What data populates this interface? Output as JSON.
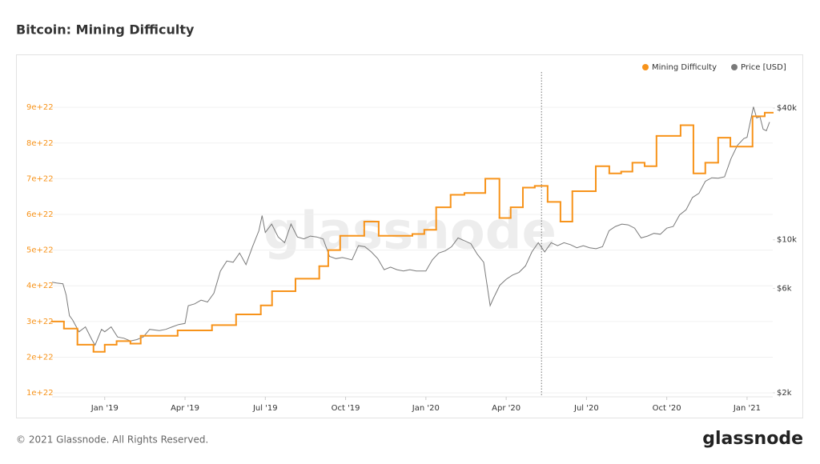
{
  "chart_data": {
    "type": "line",
    "title": "Bitcoin: Mining Difficulty",
    "watermark": "glassnode",
    "footer": "© 2021 Glassnode. All Rights Reserved.",
    "brand": "glassnode",
    "grid": true,
    "legend": "top-right",
    "xlim": [
      2018.836,
      2021.08
    ],
    "xticks": [
      {
        "value": 2019.0,
        "label": "Jan '19"
      },
      {
        "value": 2019.25,
        "label": "Apr '19"
      },
      {
        "value": 2019.5,
        "label": "Jul '19"
      },
      {
        "value": 2019.75,
        "label": "Oct '19"
      },
      {
        "value": 2020.0,
        "label": "Jan '20"
      },
      {
        "value": 2020.25,
        "label": "Apr '20"
      },
      {
        "value": 2020.5,
        "label": "Jul '20"
      },
      {
        "value": 2020.75,
        "label": "Oct '20"
      },
      {
        "value": 2021.0,
        "label": "Jan '21"
      }
    ],
    "ylim": [
      8.9e+21,
      9.99e+22
    ],
    "yticks": [
      {
        "value": 1e+22,
        "label": "1e+22"
      },
      {
        "value": 2e+22,
        "label": "2e+22"
      },
      {
        "value": 3e+22,
        "label": "3e+22"
      },
      {
        "value": 4e+22,
        "label": "4e+22"
      },
      {
        "value": 5e+22,
        "label": "5e+22"
      },
      {
        "value": 6e+22,
        "label": "6e+22"
      },
      {
        "value": 7e+22,
        "label": "7e+22"
      },
      {
        "value": 8e+22,
        "label": "8e+22"
      },
      {
        "value": 9e+22,
        "label": "9e+22"
      }
    ],
    "y2lim": [
      1918,
      58400
    ],
    "y2log": true,
    "y2ticks": [
      {
        "value": 2000,
        "label": "$2k"
      },
      {
        "value": 6000,
        "label": "$6k"
      },
      {
        "value": 10000,
        "label": "$10k"
      },
      {
        "value": 40000,
        "label": "$40k"
      }
    ],
    "vline_x": 2020.36,
    "series": [
      {
        "name": "Mining Difficulty",
        "color": "#f7931a",
        "step": true,
        "x": [
          2018.836,
          2018.873,
          2018.915,
          2018.965,
          2019.0,
          2019.037,
          2019.08,
          2019.112,
          2019.227,
          2019.334,
          2019.409,
          2019.486,
          2019.521,
          2019.594,
          2019.668,
          2019.696,
          2019.733,
          2019.808,
          2019.853,
          2019.958,
          2019.995,
          2020.032,
          2020.077,
          2020.12,
          2020.185,
          2020.229,
          2020.264,
          2020.302,
          2020.339,
          2020.379,
          2020.419,
          2020.456,
          2020.529,
          2020.571,
          2020.608,
          2020.643,
          2020.681,
          2020.718,
          2020.793,
          2020.833,
          2020.87,
          2020.91,
          2020.948,
          2021.017,
          2021.055
        ],
        "values": [
          3e+22,
          2.8e+22,
          2.35e+22,
          2.15e+22,
          2.35e+22,
          2.45e+22,
          2.38e+22,
          2.6e+22,
          2.75e+22,
          2.9e+22,
          3.2e+22,
          3.45e+22,
          3.85e+22,
          4.2e+22,
          4.55e+22,
          5e+22,
          5.4e+22,
          5.8e+22,
          5.4e+22,
          5.45e+22,
          5.57e+22,
          6.2e+22,
          6.55e+22,
          6.6e+22,
          7e+22,
          5.9e+22,
          6.2e+22,
          6.75e+22,
          6.8e+22,
          6.35e+22,
          5.8e+22,
          6.65e+22,
          7.35e+22,
          7.15e+22,
          7.2e+22,
          7.45e+22,
          7.35e+22,
          8.2e+22,
          8.5e+22,
          7.15e+22,
          7.45e+22,
          8.15e+22,
          7.9e+22,
          8.75e+22,
          8.85e+22
        ]
      },
      {
        "name": "Price [USD]",
        "color": "#7a7a7a",
        "axis": "y2",
        "x": [
          2018.836,
          2018.85,
          2018.87,
          2018.88,
          2018.89,
          2018.9,
          2018.92,
          2018.94,
          2018.96,
          2018.97,
          2018.99,
          2019.0,
          2019.02,
          2019.04,
          2019.06,
          2019.08,
          2019.1,
          2019.12,
          2019.14,
          2019.17,
          2019.19,
          2019.21,
          2019.23,
          2019.25,
          2019.26,
          2019.28,
          2019.3,
          2019.32,
          2019.34,
          2019.36,
          2019.38,
          2019.4,
          2019.42,
          2019.44,
          2019.46,
          2019.48,
          2019.49,
          2019.5,
          2019.52,
          2019.54,
          2019.56,
          2019.58,
          2019.6,
          2019.62,
          2019.64,
          2019.66,
          2019.68,
          2019.7,
          2019.72,
          2019.74,
          2019.77,
          2019.79,
          2019.81,
          2019.83,
          2019.85,
          2019.87,
          2019.89,
          2019.91,
          2019.93,
          2019.95,
          2019.97,
          2020.0,
          2020.02,
          2020.04,
          2020.06,
          2020.08,
          2020.1,
          2020.12,
          2020.14,
          2020.16,
          2020.18,
          2020.2,
          2020.21,
          2020.23,
          2020.25,
          2020.27,
          2020.29,
          2020.31,
          2020.33,
          2020.35,
          2020.37,
          2020.39,
          2020.41,
          2020.43,
          2020.45,
          2020.47,
          2020.49,
          2020.51,
          2020.53,
          2020.55,
          2020.57,
          2020.59,
          2020.61,
          2020.63,
          2020.65,
          2020.67,
          2020.69,
          2020.71,
          2020.73,
          2020.75,
          2020.77,
          2020.79,
          2020.81,
          2020.83,
          2020.85,
          2020.87,
          2020.89,
          2020.91,
          2020.93,
          2020.95,
          2020.97,
          2020.99,
          2021.0,
          2021.02,
          2021.03,
          2021.04,
          2021.05,
          2021.06,
          2021.07
        ],
        "values": [
          6400,
          6350,
          6300,
          5600,
          4500,
          4300,
          3800,
          4000,
          3500,
          3300,
          3900,
          3800,
          4000,
          3600,
          3550,
          3450,
          3500,
          3600,
          3900,
          3850,
          3900,
          4000,
          4100,
          4150,
          5000,
          5100,
          5300,
          5200,
          5700,
          7200,
          8000,
          7900,
          8700,
          7700,
          9300,
          11000,
          12900,
          10800,
          11800,
          10300,
          9700,
          11800,
          10300,
          10100,
          10400,
          10300,
          10100,
          8400,
          8200,
          8300,
          8100,
          9400,
          9300,
          8800,
          8200,
          7300,
          7500,
          7300,
          7200,
          7300,
          7200,
          7200,
          8100,
          8700,
          8900,
          9300,
          10200,
          9900,
          9600,
          8600,
          7900,
          5000,
          5400,
          6200,
          6600,
          6900,
          7100,
          7600,
          8800,
          9700,
          8800,
          9700,
          9400,
          9700,
          9500,
          9200,
          9400,
          9200,
          9100,
          9300,
          11000,
          11500,
          11800,
          11700,
          11300,
          10200,
          10400,
          10700,
          10600,
          11300,
          11500,
          13000,
          13700,
          15600,
          16300,
          18500,
          19200,
          19100,
          19400,
          23500,
          27000,
          29000,
          29400,
          40500,
          36000,
          36500,
          32000,
          31500,
          34500
        ]
      }
    ]
  }
}
